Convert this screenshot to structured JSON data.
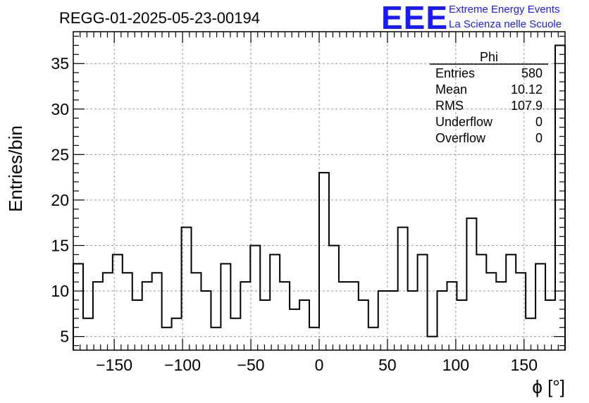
{
  "logo": {
    "letters": "EEE",
    "line1": "Extreme Energy Events",
    "line2": "La Scienza nelle Scuole",
    "color": "#1a1aff"
  },
  "stats": {
    "name": "Phi",
    "rows": [
      {
        "label": "Entries",
        "value": "580"
      },
      {
        "label": "Mean",
        "value": "10.12"
      },
      {
        "label": "RMS",
        "value": "107.9"
      },
      {
        "label": "Underflow",
        "value": "0"
      },
      {
        "label": "Overflow",
        "value": "0"
      }
    ]
  },
  "chart_data": {
    "type": "bar",
    "style": "step-histogram",
    "title": "REGG-01-2025-05-23-00194",
    "xlabel": "ϕ [°]",
    "ylabel": "Entries/bin",
    "xlim": [
      -180,
      180
    ],
    "ylim": [
      3.5,
      38.5
    ],
    "bin_width": 7.2,
    "x_ticks": [
      -150,
      -100,
      -50,
      0,
      50,
      100,
      150
    ],
    "x_tick_labels": [
      "−150",
      "−100",
      "−50",
      "0",
      "50",
      "100",
      "150"
    ],
    "y_ticks": [
      5,
      10,
      15,
      20,
      25,
      30,
      35
    ],
    "y_tick_labels": [
      "5",
      "10",
      "15",
      "20",
      "25",
      "30",
      "35"
    ],
    "grid": true,
    "values": [
      13,
      7,
      11,
      12,
      14,
      12,
      9,
      11,
      12,
      6,
      7,
      17,
      12,
      10,
      6,
      13,
      7,
      11,
      15,
      9,
      14,
      11,
      8,
      9,
      6,
      23,
      15,
      11,
      11,
      9,
      6,
      10,
      10,
      17,
      10,
      14,
      5,
      10,
      11,
      9,
      18,
      14,
      12,
      11,
      14,
      12,
      7,
      13,
      9,
      37
    ]
  }
}
